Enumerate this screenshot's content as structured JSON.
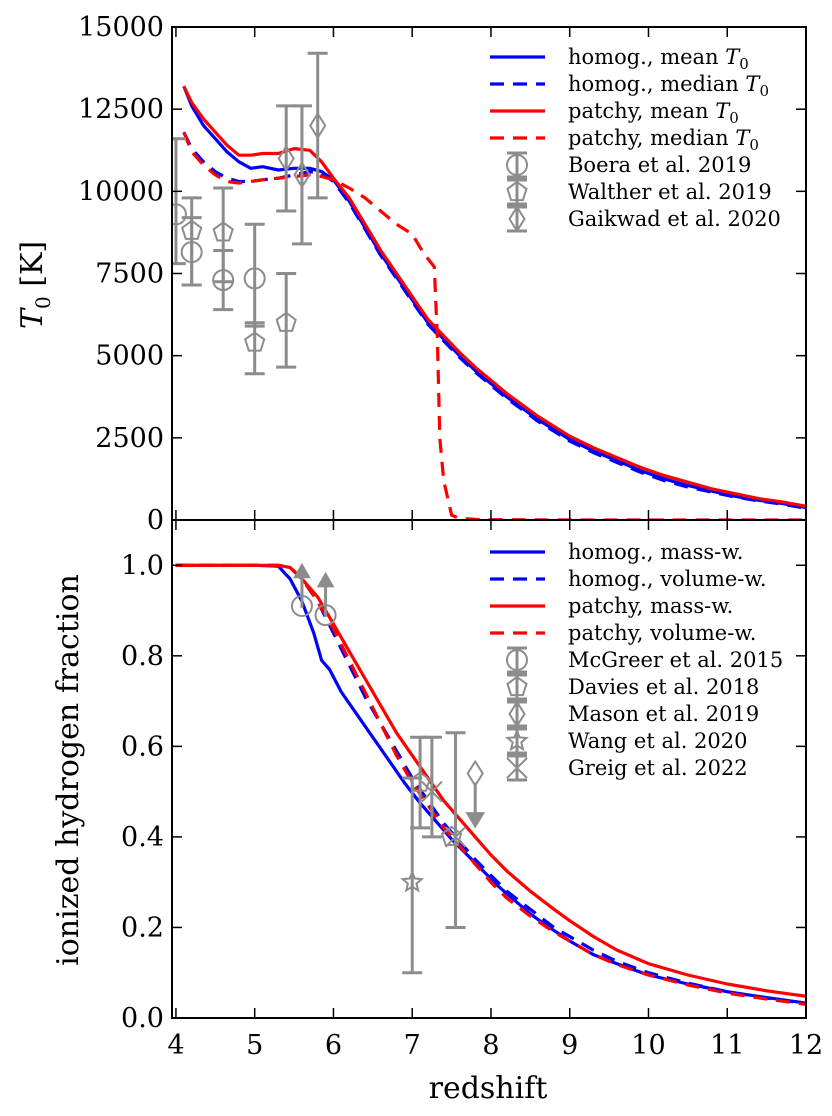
{
  "chart_data": [
    {
      "type": "line",
      "panel": "top",
      "ylabel": "T_0 [K]",
      "ylabel_main": "T",
      "ylabel_sub": "0",
      "ylabel_unit": " [K]",
      "xlim": [
        3.95,
        12.0
      ],
      "ylim": [
        0,
        15000
      ],
      "xticks": [
        4,
        5,
        6,
        7,
        8,
        9,
        10,
        11,
        12
      ],
      "yticks": [
        0,
        2500,
        5000,
        7500,
        10000,
        12500,
        15000
      ],
      "ytick_labels": [
        "0",
        "2500",
        "5000",
        "7500",
        "10000",
        "12500",
        "15000"
      ],
      "legend_position": "top-right",
      "series": [
        {
          "name": "homog., mean T0",
          "label_text": "homog., mean ",
          "label_math": "T",
          "label_sub": "0",
          "color": "#0000ff",
          "dash": "solid",
          "x": [
            4.1,
            4.2,
            4.35,
            4.5,
            4.65,
            4.8,
            4.95,
            5.1,
            5.3,
            5.5,
            5.7,
            5.85,
            6.0,
            6.2,
            6.4,
            6.6,
            6.8,
            7.0,
            7.2,
            7.4,
            7.6,
            7.8,
            8.0,
            8.2,
            8.4,
            8.6,
            8.8,
            9.0,
            9.3,
            9.6,
            9.9,
            10.2,
            10.5,
            10.8,
            11.1,
            11.4,
            11.7,
            12.0
          ],
          "y": [
            13200,
            12600,
            12000,
            11600,
            11200,
            10900,
            10700,
            10750,
            10650,
            10700,
            10700,
            10600,
            10350,
            9700,
            8900,
            8100,
            7400,
            6700,
            6000,
            5500,
            5000,
            4550,
            4150,
            3750,
            3400,
            3050,
            2750,
            2450,
            2100,
            1800,
            1500,
            1250,
            1050,
            880,
            720,
            600,
            500,
            380
          ]
        },
        {
          "name": "homog., median T0",
          "label_text": "homog., median ",
          "label_math": "T",
          "label_sub": "0",
          "color": "#0000ff",
          "dash": "dashed",
          "x": [
            4.1,
            4.2,
            4.35,
            4.5,
            4.65,
            4.8,
            4.95,
            5.1,
            5.3,
            5.5,
            5.7,
            5.85,
            6.0,
            6.2,
            6.4,
            6.6,
            6.8,
            7.0,
            7.2,
            7.4,
            7.6,
            7.8,
            8.0,
            8.2,
            8.4,
            8.6,
            8.8,
            9.0,
            9.3,
            9.6,
            9.9,
            10.2,
            10.5,
            10.8,
            11.1,
            11.4,
            11.7,
            12.0
          ],
          "y": [
            11800,
            11300,
            10900,
            10600,
            10400,
            10300,
            10300,
            10350,
            10400,
            10500,
            10600,
            10550,
            10300,
            9650,
            8850,
            8050,
            7350,
            6650,
            5950,
            5450,
            4950,
            4500,
            4100,
            3700,
            3350,
            3000,
            2700,
            2400,
            2050,
            1750,
            1450,
            1200,
            1000,
            850,
            700,
            580,
            480,
            360
          ]
        },
        {
          "name": "patchy, mean T0",
          "label_text": "patchy, mean ",
          "label_math": "T",
          "label_sub": "0",
          "color": "#ff0000",
          "dash": "solid",
          "x": [
            4.1,
            4.2,
            4.35,
            4.5,
            4.65,
            4.8,
            4.95,
            5.1,
            5.3,
            5.5,
            5.7,
            5.85,
            6.0,
            6.2,
            6.4,
            6.6,
            6.8,
            7.0,
            7.2,
            7.4,
            7.6,
            7.8,
            8.0,
            8.2,
            8.4,
            8.6,
            8.8,
            9.0,
            9.3,
            9.6,
            9.9,
            10.2,
            10.5,
            10.8,
            11.1,
            11.4,
            11.7,
            12.0
          ],
          "y": [
            13200,
            12700,
            12200,
            11800,
            11400,
            11100,
            11100,
            11150,
            11150,
            11300,
            11250,
            10900,
            10400,
            9800,
            9000,
            8200,
            7500,
            6800,
            6100,
            5600,
            5100,
            4650,
            4250,
            3850,
            3500,
            3150,
            2850,
            2550,
            2200,
            1900,
            1600,
            1350,
            1150,
            950,
            800,
            650,
            550,
            420
          ]
        },
        {
          "name": "patchy, median T0",
          "label_text": "patchy, median ",
          "label_math": "T",
          "label_sub": "0",
          "color": "#ff0000",
          "dash": "dashed",
          "x": [
            4.1,
            4.2,
            4.35,
            4.5,
            4.65,
            4.8,
            4.95,
            5.1,
            5.3,
            5.5,
            5.7,
            5.85,
            6.0,
            6.2,
            6.4,
            6.6,
            6.8,
            7.0,
            7.15,
            7.28,
            7.32,
            7.35,
            7.4,
            7.5,
            7.6,
            7.8,
            8.0,
            9.0,
            10.0,
            11.0,
            12.0
          ],
          "y": [
            11800,
            11200,
            10800,
            10500,
            10300,
            10250,
            10300,
            10350,
            10400,
            10450,
            10500,
            10450,
            10350,
            10100,
            9800,
            9400,
            9000,
            8700,
            8100,
            7700,
            5500,
            2500,
            1200,
            150,
            50,
            20,
            10,
            0,
            0,
            0,
            0
          ]
        }
      ],
      "observations": [
        {
          "name": "Boera et al. 2019",
          "marker": "circle",
          "points": [
            {
              "x": 4.0,
              "y": 9300,
              "yerr_low": 1500,
              "yerr_high": 2300
            },
            {
              "x": 4.2,
              "y": 8150,
              "yerr_low": 1000,
              "yerr_high": 1050
            },
            {
              "x": 4.6,
              "y": 7300,
              "yerr_low": 900,
              "yerr_high": 900
            },
            {
              "x": 5.0,
              "y": 7350,
              "yerr_low": 1450,
              "yerr_high": 1650
            }
          ]
        },
        {
          "name": "Walther et al. 2019",
          "marker": "pentagon",
          "points": [
            {
              "x": 4.2,
              "y": 8800,
              "yerr_low": 1650,
              "yerr_high": 1000
            },
            {
              "x": 4.6,
              "y": 8750,
              "yerr_low": 1500,
              "yerr_high": 1350
            },
            {
              "x": 5.0,
              "y": 5400,
              "yerr_low": 950,
              "yerr_high": 600
            },
            {
              "x": 5.4,
              "y": 6000,
              "yerr_low": 1350,
              "yerr_high": 1500
            }
          ]
        },
        {
          "name": "Gaikwad et al. 2020",
          "marker": "diamond",
          "points": [
            {
              "x": 5.4,
              "y": 11000,
              "yerr_low": 1600,
              "yerr_high": 1600
            },
            {
              "x": 5.6,
              "y": 10500,
              "yerr_low": 2100,
              "yerr_high": 2100
            },
            {
              "x": 5.8,
              "y": 12000,
              "yerr_low": 2200,
              "yerr_high": 2200
            }
          ]
        }
      ]
    },
    {
      "type": "line",
      "panel": "bottom",
      "xlabel": "redshift",
      "ylabel": "ionized hydrogen fraction",
      "xlim": [
        3.95,
        12.0
      ],
      "ylim": [
        0.0,
        1.1
      ],
      "xticks": [
        4,
        5,
        6,
        7,
        8,
        9,
        10,
        11,
        12
      ],
      "xtick_labels": [
        "4",
        "5",
        "6",
        "7",
        "8",
        "9",
        "10",
        "11",
        "12"
      ],
      "yticks": [
        0.0,
        0.2,
        0.4,
        0.6,
        0.8,
        1.0
      ],
      "ytick_labels": [
        "0.0",
        "0.2",
        "0.4",
        "0.6",
        "0.8",
        "1.0"
      ],
      "legend_position": "top-right",
      "series": [
        {
          "name": "homog., mass-w.",
          "color": "#0000ff",
          "dash": "solid",
          "x": [
            4.0,
            4.5,
            5.0,
            5.3,
            5.45,
            5.6,
            5.75,
            5.85,
            5.95,
            6.1,
            6.3,
            6.5,
            6.7,
            6.9,
            7.1,
            7.3,
            7.5,
            7.7,
            7.9,
            8.1,
            8.3,
            8.5,
            8.7,
            9.0,
            9.3,
            9.6,
            10.0,
            10.5,
            11.0,
            11.5,
            12.0
          ],
          "y": [
            1.0,
            1.0,
            1.0,
            0.998,
            0.97,
            0.92,
            0.85,
            0.79,
            0.77,
            0.72,
            0.67,
            0.62,
            0.57,
            0.52,
            0.475,
            0.435,
            0.395,
            0.36,
            0.325,
            0.29,
            0.26,
            0.23,
            0.205,
            0.17,
            0.14,
            0.12,
            0.095,
            0.075,
            0.058,
            0.045,
            0.033
          ]
        },
        {
          "name": "homog., volume-w.",
          "color": "#0000ff",
          "dash": "dashed",
          "x": [
            4.0,
            4.5,
            5.0,
            5.3,
            5.45,
            5.6,
            5.8,
            6.0,
            6.2,
            6.4,
            6.6,
            6.8,
            7.0,
            7.2,
            7.4,
            7.6,
            7.8,
            8.0,
            8.2,
            8.5,
            8.8,
            9.0,
            9.3,
            9.6,
            10.0,
            10.5,
            11.0,
            11.5,
            12.0
          ],
          "y": [
            1.0,
            1.0,
            1.0,
            1.0,
            0.995,
            0.97,
            0.92,
            0.85,
            0.78,
            0.71,
            0.65,
            0.59,
            0.53,
            0.48,
            0.43,
            0.39,
            0.35,
            0.315,
            0.28,
            0.24,
            0.2,
            0.18,
            0.15,
            0.125,
            0.1,
            0.077,
            0.058,
            0.044,
            0.032
          ]
        },
        {
          "name": "patchy, mass-w.",
          "color": "#ff0000",
          "dash": "solid",
          "x": [
            4.0,
            4.5,
            5.0,
            5.3,
            5.45,
            5.6,
            5.8,
            6.0,
            6.2,
            6.4,
            6.6,
            6.8,
            7.0,
            7.2,
            7.4,
            7.6,
            7.8,
            8.0,
            8.2,
            8.5,
            8.8,
            9.0,
            9.3,
            9.6,
            10.0,
            10.5,
            11.0,
            11.5,
            12.0
          ],
          "y": [
            1.0,
            1.0,
            1.0,
            1.0,
            0.995,
            0.97,
            0.93,
            0.87,
            0.81,
            0.75,
            0.69,
            0.63,
            0.58,
            0.53,
            0.48,
            0.44,
            0.4,
            0.36,
            0.325,
            0.28,
            0.24,
            0.215,
            0.18,
            0.15,
            0.12,
            0.095,
            0.075,
            0.06,
            0.048
          ]
        },
        {
          "name": "patchy, volume-w.",
          "color": "#ff0000",
          "dash": "dashed",
          "x": [
            4.0,
            4.5,
            5.0,
            5.3,
            5.45,
            5.6,
            5.8,
            6.0,
            6.2,
            6.4,
            6.6,
            6.8,
            7.0,
            7.2,
            7.4,
            7.6,
            7.8,
            8.0,
            8.2,
            8.5,
            8.8,
            9.0,
            9.3,
            9.6,
            10.0,
            10.5,
            11.0,
            11.5,
            12.0
          ],
          "y": [
            1.0,
            1.0,
            1.0,
            1.0,
            0.995,
            0.97,
            0.92,
            0.86,
            0.79,
            0.72,
            0.65,
            0.58,
            0.52,
            0.47,
            0.42,
            0.38,
            0.34,
            0.3,
            0.265,
            0.225,
            0.19,
            0.17,
            0.14,
            0.118,
            0.095,
            0.073,
            0.055,
            0.042,
            0.03
          ]
        }
      ],
      "observations": [
        {
          "name": "McGreer et al. 2015",
          "marker": "circle",
          "points": [
            {
              "x": 5.6,
              "y": 0.91,
              "yerr_low": 0.0,
              "yerr_high": 0.0
            },
            {
              "x": 5.9,
              "y": 0.89,
              "yerr_low": 0.0,
              "yerr_high": 0.0
            }
          ]
        },
        {
          "name": "Davies et al. 2018",
          "marker": "pentagon",
          "points": [
            {
              "x": 7.1,
              "y": 0.52,
              "yerr_low": 0.1,
              "yerr_high": 0.1
            },
            {
              "x": 7.5,
              "y": 0.4,
              "yerr_low": 0.0,
              "yerr_high": 0.0
            }
          ]
        },
        {
          "name": "Mason et al. 2019",
          "marker": "diamond",
          "points": [
            {
              "x": 7.8,
              "y": 0.54,
              "yerr_low": 0.0,
              "yerr_high": 0.0
            }
          ]
        },
        {
          "name": "Wang et al. 2020",
          "marker": "star",
          "points": [
            {
              "x": 7.0,
              "y": 0.3,
              "yerr_low": 0.2,
              "yerr_high": 0.23
            }
          ]
        },
        {
          "name": "Greig et al. 2022",
          "marker": "x",
          "points": [
            {
              "x": 7.25,
              "y": 0.5,
              "yerr_low": 0.1,
              "yerr_high": 0.12
            },
            {
              "x": 7.55,
              "y": 0.4,
              "yerr_low": 0.2,
              "yerr_high": 0.23
            }
          ]
        }
      ],
      "limits": [
        {
          "x": 5.6,
          "y": 0.99,
          "direction": "up"
        },
        {
          "x": 5.9,
          "y": 0.97,
          "direction": "up"
        },
        {
          "x": 7.8,
          "y": 0.52,
          "direction": "down"
        }
      ]
    }
  ]
}
